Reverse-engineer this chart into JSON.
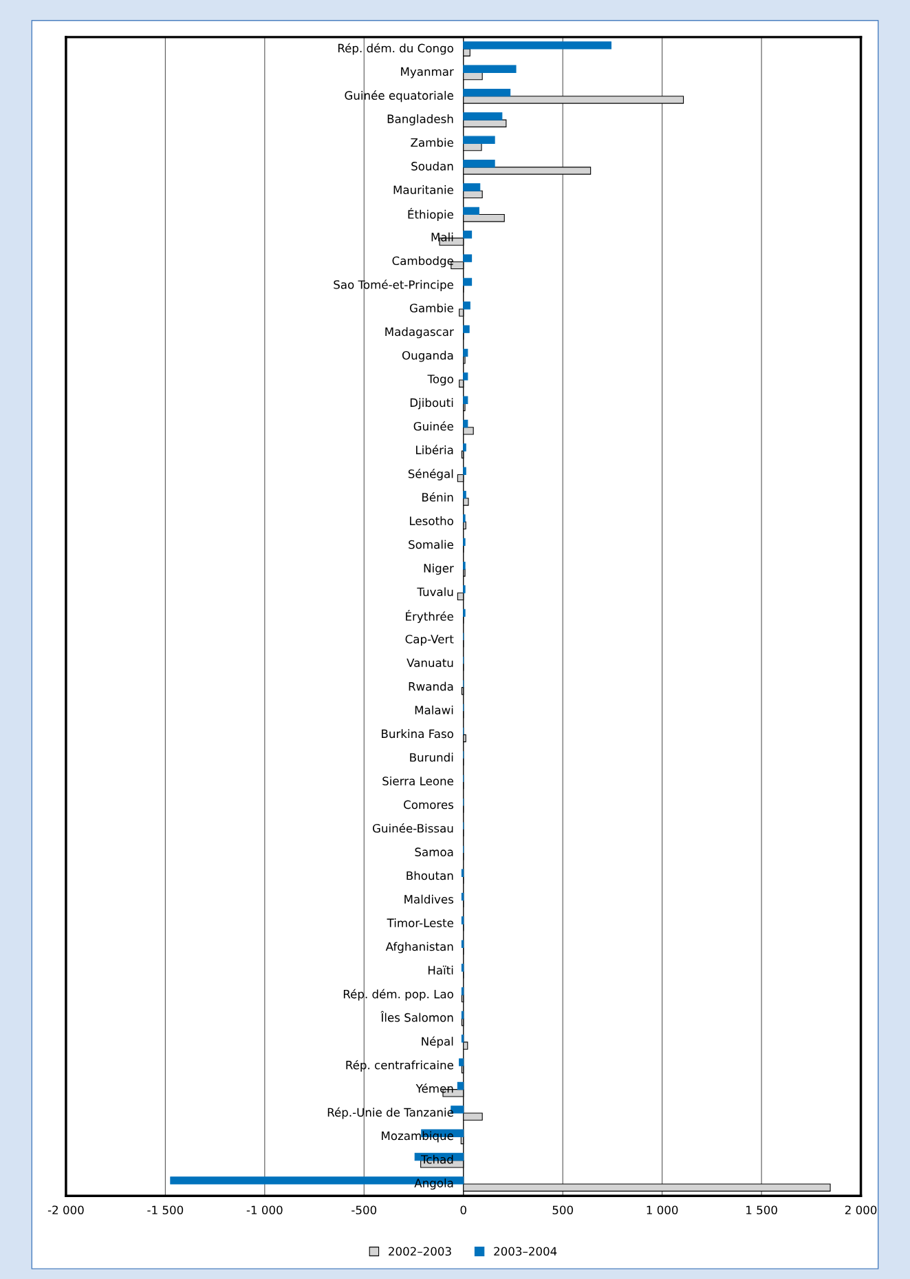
{
  "chart_data": {
    "type": "bar",
    "orientation": "horizontal",
    "categories": [
      "Rép. dém. du Congo",
      "Myanmar",
      "Guinée equatoriale",
      "Bangladesh",
      "Zambie",
      "Soudan",
      "Mauritanie",
      "Éthiopie",
      "Mali",
      "Cambodge",
      "Sao Tomé-et-Principe",
      "Gambie",
      "Madagascar",
      "Ouganda",
      "Togo",
      "Djibouti",
      "Guinée",
      "Libéria",
      "Sénégal",
      "Bénin",
      "Lesotho",
      "Somalie",
      "Niger",
      "Tuvalu",
      "Érythrée",
      "Cap-Vert",
      "Vanuatu",
      "Rwanda",
      "Malawi",
      "Burkina Faso",
      "Burundi",
      "Sierra Leone",
      "Comores",
      "Guinée-Bissau",
      "Samoa",
      "Bhoutan",
      "Maldives",
      "Timor-Leste",
      "Afghanistan",
      "Haïti",
      "Rép. dém. pop. Lao",
      "Îles Salomon",
      "Népal",
      "Rép. centrafricaine",
      "Yémen",
      "Rép.-Unie de Tanzanie",
      "Mozambique",
      "Tchad",
      "Angola"
    ],
    "series": [
      {
        "name": "2002–2003",
        "color": "#d4d4d4",
        "values": [
          33,
          95,
          1107,
          215,
          91,
          640,
          95,
          206,
          -120,
          -62,
          0,
          -21,
          0,
          8,
          -21,
          8,
          50,
          -8,
          -29,
          25,
          12,
          0,
          8,
          -29,
          0,
          0,
          0,
          -8,
          0,
          12,
          0,
          0,
          0,
          0,
          0,
          0,
          0,
          0,
          0,
          0,
          -8,
          -8,
          21,
          -8,
          -103,
          95,
          -12,
          -215,
          1846
        ]
      },
      {
        "name": "2003–2004",
        "color": "#0072bc",
        "values": [
          743,
          264,
          235,
          194,
          157,
          157,
          83,
          78,
          41,
          41,
          41,
          33,
          29,
          21,
          21,
          21,
          21,
          12,
          12,
          12,
          8,
          8,
          8,
          8,
          8,
          0,
          0,
          0,
          0,
          0,
          0,
          0,
          0,
          0,
          0,
          -8,
          -8,
          -8,
          -8,
          -8,
          -8,
          -8,
          -8,
          -21,
          -29,
          -62,
          -211,
          -244,
          -1474
        ]
      }
    ],
    "xlim": [
      -2000,
      2000
    ],
    "xticks": [
      {
        "value": -2000,
        "label": "-2 000"
      },
      {
        "value": -1500,
        "label": "-1 500"
      },
      {
        "value": -1000,
        "label": "-1 000"
      },
      {
        "value": -500,
        "label": "-500"
      },
      0,
      500,
      {
        "value": 1000,
        "label": "1 000"
      },
      {
        "value": 1500,
        "label": "1 500"
      },
      {
        "value": 2000,
        "label": "2 000"
      }
    ],
    "grid": "x",
    "legend": "bottom"
  }
}
